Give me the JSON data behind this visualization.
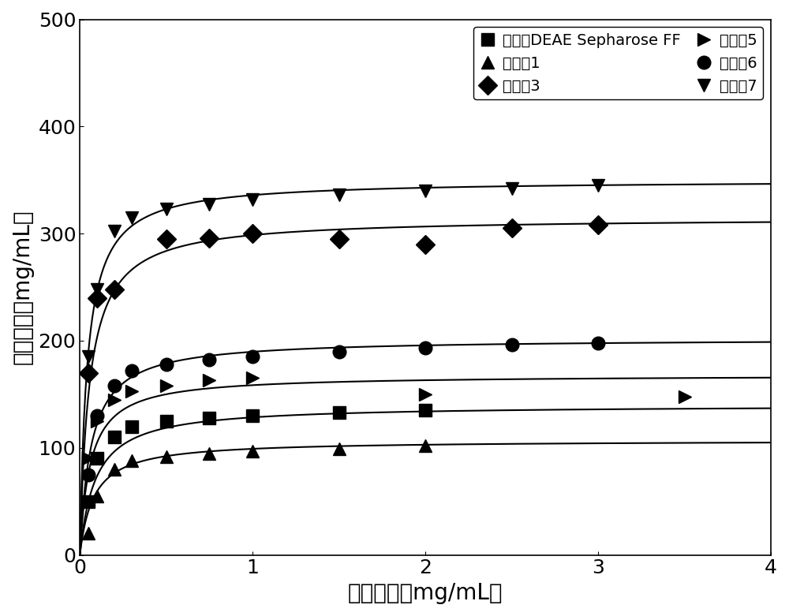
{
  "title": "",
  "xlabel": "平衡浓度（mg/mL）",
  "ylabel": "吸附容量（mg/mL）",
  "xlim": [
    0,
    4
  ],
  "ylim": [
    0,
    500
  ],
  "xticks": [
    0,
    1,
    2,
    3,
    4
  ],
  "yticks": [
    0,
    100,
    200,
    300,
    400,
    500
  ],
  "background_color": "#ffffff",
  "series": [
    {
      "label": "商品化DEAE Sepharose FF",
      "marker": "s",
      "color": "#000000",
      "x": [
        0.05,
        0.1,
        0.2,
        0.3,
        0.5,
        0.75,
        1.0,
        1.5,
        2.0
      ],
      "y": [
        50,
        90,
        110,
        120,
        125,
        128,
        130,
        133,
        135
      ],
      "qmax": 138,
      "kd": 0.08
    },
    {
      "label": "实施例1",
      "marker": "^",
      "color": "#000000",
      "x": [
        0.05,
        0.1,
        0.2,
        0.3,
        0.5,
        0.75,
        1.0,
        1.5,
        2.0
      ],
      "y": [
        20,
        60,
        85,
        90,
        92,
        95,
        98,
        100,
        102
      ],
      "qmax": 105,
      "kd": 0.07
    },
    {
      "label": "实施例3",
      "marker": "D",
      "color": "#000000",
      "x": [
        0.05,
        0.1,
        0.2,
        0.3,
        0.5,
        0.75,
        1.0,
        1.5,
        2.0,
        2.5,
        3.0
      ],
      "y": [
        170,
        240,
        248,
        295,
        295,
        300,
        300,
        295,
        293,
        305,
        308
      ],
      "qmax": 315,
      "kd": 0.05
    },
    {
      "label": "实施例5",
      "marker": ">",
      "color": "#000000",
      "x": [
        0.05,
        0.1,
        0.2,
        0.3,
        0.5,
        0.75,
        1.0,
        1.5,
        2.0,
        2.5,
        3.0,
        3.5
      ],
      "y": [
        100,
        130,
        155,
        162,
        167,
        170,
        172,
        150,
        150,
        150,
        148,
        148
      ],
      "qmax": 152,
      "kd": 0.05
    },
    {
      "label": "实施例6",
      "marker": "o",
      "color": "#000000",
      "x": [
        0.05,
        0.1,
        0.2,
        0.3,
        0.5,
        0.75,
        1.0,
        1.5,
        2.0,
        2.5,
        3.0
      ],
      "y": [
        80,
        140,
        165,
        178,
        182,
        185,
        188,
        192,
        195,
        196,
        198
      ],
      "qmax": 200,
      "kd": 0.06
    },
    {
      "label": "实施例7",
      "marker": "v",
      "color": "#000000",
      "x": [
        0.05,
        0.1,
        0.2,
        0.3,
        0.5,
        0.75,
        1.0,
        1.5,
        2.0,
        2.5,
        3.0
      ],
      "y": [
        185,
        245,
        300,
        315,
        320,
        325,
        330,
        335,
        340,
        342,
        345
      ],
      "qmax": 348,
      "kd": 0.04
    }
  ],
  "xlabel_fontsize": 20,
  "ylabel_fontsize": 20,
  "tick_fontsize": 18,
  "legend_fontsize": 14,
  "marker_size": 12,
  "line_width": 1.5
}
